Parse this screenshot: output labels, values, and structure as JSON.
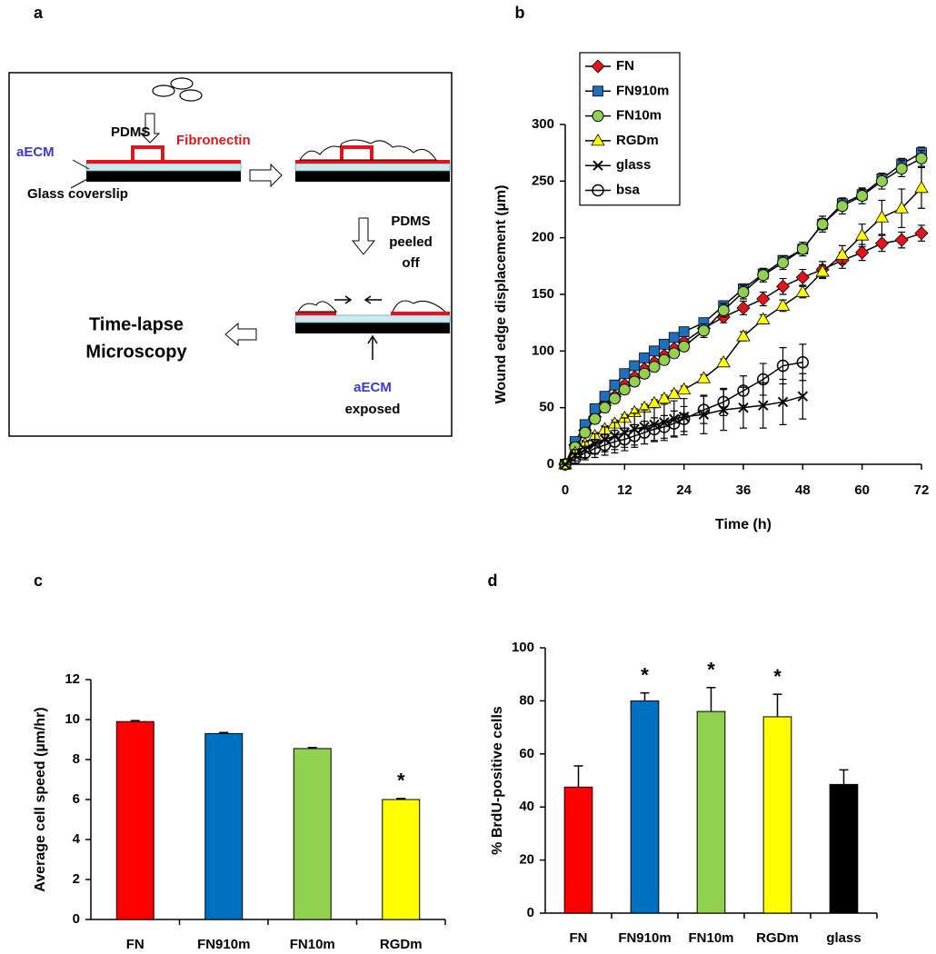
{
  "diagram": {
    "panel_label": "a",
    "pdms": "PDMS",
    "fibronectin": "Fibronectin",
    "aecm": "aECM",
    "glass": "Glass coverslip",
    "peeled": [
      "PDMS",
      "peeled",
      "off"
    ],
    "timelapse": [
      "Time-lapse",
      "Microscopy"
    ],
    "aecm_exposed": "aECM",
    "exposed": "exposed"
  },
  "chart_data": [
    {
      "type": "line",
      "panel_label": "b",
      "xlabel": "Time (h)",
      "ylabel": "Wound edge displacement (µm)",
      "x": [
        0,
        2,
        4,
        6,
        8,
        10,
        12,
        14,
        16,
        18,
        20,
        22,
        24,
        28,
        32,
        36,
        40,
        44,
        48,
        52,
        56,
        60,
        64,
        68,
        72
      ],
      "xlim": [
        0,
        72
      ],
      "xticks": [
        0,
        12,
        24,
        36,
        48,
        60,
        72
      ],
      "ylim": [
        0,
        300
      ],
      "yticks": [
        0,
        50,
        100,
        150,
        200,
        250,
        300
      ],
      "legend": "upper left",
      "line_color": "#000000",
      "series": [
        {
          "name": "FN",
          "color": "#e3141b",
          "marker": "diamond",
          "values": [
            0,
            17,
            30,
            42,
            52,
            60,
            70,
            77,
            84,
            90,
            96,
            102,
            108,
            120,
            130,
            138,
            146,
            157,
            165,
            172,
            180,
            187,
            195,
            198,
            204
          ],
          "errors": [
            0,
            3,
            3,
            3,
            3,
            3,
            3,
            3,
            3,
            3,
            3,
            3,
            3,
            5,
            5,
            6,
            6,
            7,
            7,
            7,
            7,
            7,
            7,
            7,
            7
          ]
        },
        {
          "name": "FN910m",
          "color": "#1f6fbf",
          "marker": "square",
          "values": [
            0,
            20,
            35,
            49,
            60,
            70,
            80,
            87,
            94,
            100,
            106,
            112,
            117,
            125,
            140,
            155,
            168,
            180,
            190,
            212,
            230,
            238,
            252,
            265,
            275
          ],
          "errors": [
            0,
            3,
            3,
            3,
            3,
            3,
            3,
            3,
            3,
            3,
            3,
            3,
            3,
            4,
            4,
            4,
            4,
            4,
            4,
            5,
            5,
            5,
            5,
            5,
            5
          ]
        },
        {
          "name": "FN10m",
          "color": "#92d050",
          "marker": "circle",
          "values": [
            0,
            15,
            28,
            40,
            50,
            58,
            66,
            73,
            80,
            86,
            92,
            98,
            104,
            118,
            136,
            152,
            167,
            178,
            190,
            212,
            228,
            237,
            250,
            261,
            270
          ],
          "errors": [
            0,
            4,
            4,
            4,
            4,
            4,
            4,
            4,
            4,
            4,
            4,
            4,
            4,
            6,
            6,
            6,
            6,
            6,
            6,
            7,
            7,
            7,
            7,
            7,
            7
          ]
        },
        {
          "name": "RGDm",
          "color": "#ffff00",
          "marker": "triangle",
          "values": [
            0,
            10,
            18,
            25,
            31,
            36,
            41,
            46,
            50,
            54,
            58,
            62,
            66,
            76,
            90,
            113,
            128,
            140,
            152,
            170,
            185,
            202,
            218,
            226,
            244
          ],
          "errors": [
            0,
            3,
            3,
            3,
            3,
            3,
            3,
            3,
            3,
            3,
            3,
            3,
            3,
            3,
            3,
            4,
            4,
            5,
            5,
            6,
            8,
            10,
            15,
            17,
            18
          ]
        },
        {
          "name": "glass",
          "color": "#000000",
          "marker": "x",
          "values": [
            0,
            8,
            13,
            18,
            22,
            25,
            28,
            31,
            33,
            35,
            37,
            40,
            42,
            44,
            48,
            50,
            52,
            55,
            60,
            null,
            null,
            null,
            null,
            null,
            null
          ],
          "errors": [
            0,
            5,
            7,
            9,
            11,
            12,
            13,
            14,
            15,
            15,
            16,
            16,
            16,
            17,
            18,
            18,
            20,
            20,
            20,
            null,
            null,
            null,
            null,
            null,
            null
          ]
        },
        {
          "name": "bsa",
          "color": "#000000",
          "marker": "open-circle",
          "values": [
            0,
            5,
            10,
            14,
            17,
            20,
            22,
            25,
            28,
            31,
            33,
            36,
            40,
            48,
            55,
            65,
            75,
            87,
            90,
            null,
            null,
            null,
            null,
            null,
            null
          ],
          "errors": [
            0,
            4,
            6,
            8,
            9,
            10,
            10,
            10,
            10,
            10,
            10,
            11,
            11,
            12,
            12,
            13,
            14,
            16,
            16,
            null,
            null,
            null,
            null,
            null,
            null
          ]
        }
      ]
    },
    {
      "type": "bar",
      "panel_label": "c",
      "ylabel": "Average cell speed (µm/hr)",
      "categories": [
        "FN",
        "FN910m",
        "FN10m",
        "RGDm"
      ],
      "values": [
        9.9,
        9.3,
        8.55,
        6.0
      ],
      "errors": [
        0.05,
        0.05,
        0.05,
        0.05
      ],
      "colors": [
        "#ff0000",
        "#0070c0",
        "#92d050",
        "#ffff00"
      ],
      "annotations": [
        null,
        null,
        null,
        "*"
      ],
      "ylim": [
        0,
        12
      ],
      "yticks": [
        0,
        2,
        4,
        6,
        8,
        10,
        12
      ]
    },
    {
      "type": "bar",
      "panel_label": "d",
      "ylabel": "% BrdU-positive cells",
      "categories": [
        "FN",
        "FN910m",
        "FN10m",
        "RGDm",
        "glass"
      ],
      "values": [
        47.5,
        80,
        76,
        74,
        48.5
      ],
      "errors": [
        8,
        3,
        9,
        8.5,
        5.5
      ],
      "colors": [
        "#ff0000",
        "#0070c0",
        "#92d050",
        "#ffff00",
        "#000000"
      ],
      "annotations": [
        null,
        "*",
        "*",
        "*",
        null
      ],
      "ylim": [
        0,
        100
      ],
      "yticks": [
        0,
        20,
        40,
        60,
        80,
        100
      ]
    }
  ]
}
